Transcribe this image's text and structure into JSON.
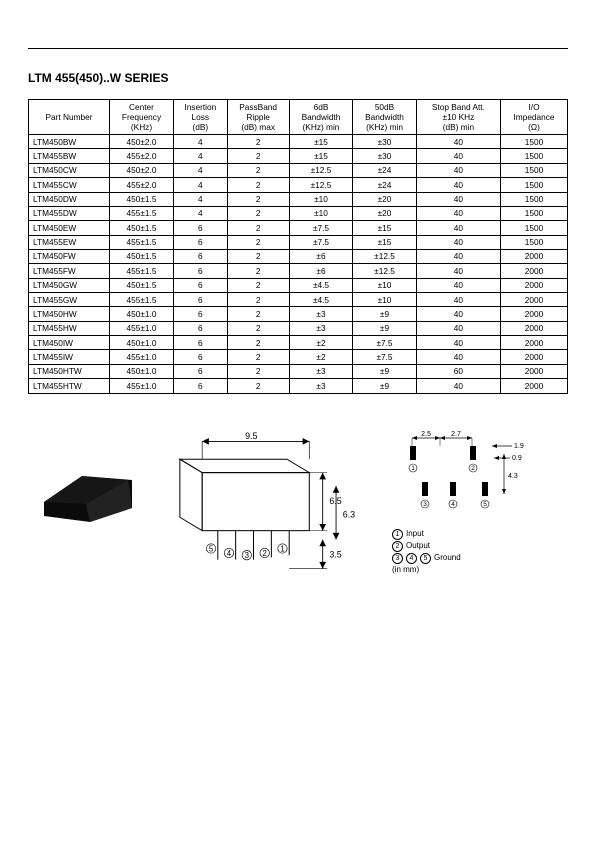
{
  "title": "LTM 455(450)..W SERIES",
  "columns": [
    "Part Number",
    "Center\nFrequency\n(KHz)",
    "Insertion\nLoss\n(dB)",
    "PassBand\nRipple\n(dB) max",
    "6dB\nBandwidth\n(KHz) min",
    "50dB\nBandwidth\n(KHz) min",
    "Stop Band Att.\n±10 KHz\n(dB) min",
    "I/O\nImpedance\n(Ω)"
  ],
  "rows": [
    [
      "LTM450BW",
      "450±2.0",
      "4",
      "2",
      "±15",
      "±30",
      "40",
      "1500"
    ],
    [
      "LTM455BW",
      "455±2.0",
      "4",
      "2",
      "±15",
      "±30",
      "40",
      "1500"
    ],
    [
      "LTM450CW",
      "450±2.0",
      "4",
      "2",
      "±12.5",
      "±24",
      "40",
      "1500"
    ],
    [
      "LTM455CW",
      "455±2.0",
      "4",
      "2",
      "±12.5",
      "±24",
      "40",
      "1500"
    ],
    [
      "LTM450DW",
      "450±1.5",
      "4",
      "2",
      "±10",
      "±20",
      "40",
      "1500"
    ],
    [
      "LTM455DW",
      "455±1.5",
      "4",
      "2",
      "±10",
      "±20",
      "40",
      "1500"
    ],
    [
      "LTM450EW",
      "450±1.5",
      "6",
      "2",
      "±7.5",
      "±15",
      "40",
      "1500"
    ],
    [
      "LTM455EW",
      "455±1.5",
      "6",
      "2",
      "±7.5",
      "±15",
      "40",
      "1500"
    ],
    [
      "LTM450FW",
      "450±1.5",
      "6",
      "2",
      "±6",
      "±12.5",
      "40",
      "2000"
    ],
    [
      "LTM455FW",
      "455±1.5",
      "6",
      "2",
      "±6",
      "±12.5",
      "40",
      "2000"
    ],
    [
      "LTM450GW",
      "450±1.5",
      "6",
      "2",
      "±4.5",
      "±10",
      "40",
      "2000"
    ],
    [
      "LTM455GW",
      "455±1.5",
      "6",
      "2",
      "±4.5",
      "±10",
      "40",
      "2000"
    ],
    [
      "LTM450HW",
      "450±1.0",
      "6",
      "2",
      "±3",
      "±9",
      "40",
      "2000"
    ],
    [
      "LTM455HW",
      "455±1.0",
      "6",
      "2",
      "±3",
      "±9",
      "40",
      "2000"
    ],
    [
      "LTM450IW",
      "450±1.0",
      "6",
      "2",
      "±2",
      "±7.5",
      "40",
      "2000"
    ],
    [
      "LTM455IW",
      "455±1.0",
      "6",
      "2",
      "±2",
      "±7.5",
      "40",
      "2000"
    ],
    [
      "LTM450HTW",
      "450±1.0",
      "6",
      "2",
      "±3",
      "±9",
      "60",
      "2000"
    ],
    [
      "LTM455HTW",
      "455±1.0",
      "6",
      "2",
      "±3",
      "±9",
      "40",
      "2000"
    ]
  ],
  "dims": {
    "body_w": "9.5",
    "body_h": "6.5",
    "body_d": "6.3",
    "pin_len": "3.5"
  },
  "pinout": {
    "p1": "2.5",
    "p2": "2.7",
    "p3": "1.9",
    "p4": "0.9",
    "p5": "4.3",
    "legend": {
      "1": "Input",
      "2": "Output",
      "345": "Ground",
      "unit": "(in mm)"
    }
  }
}
